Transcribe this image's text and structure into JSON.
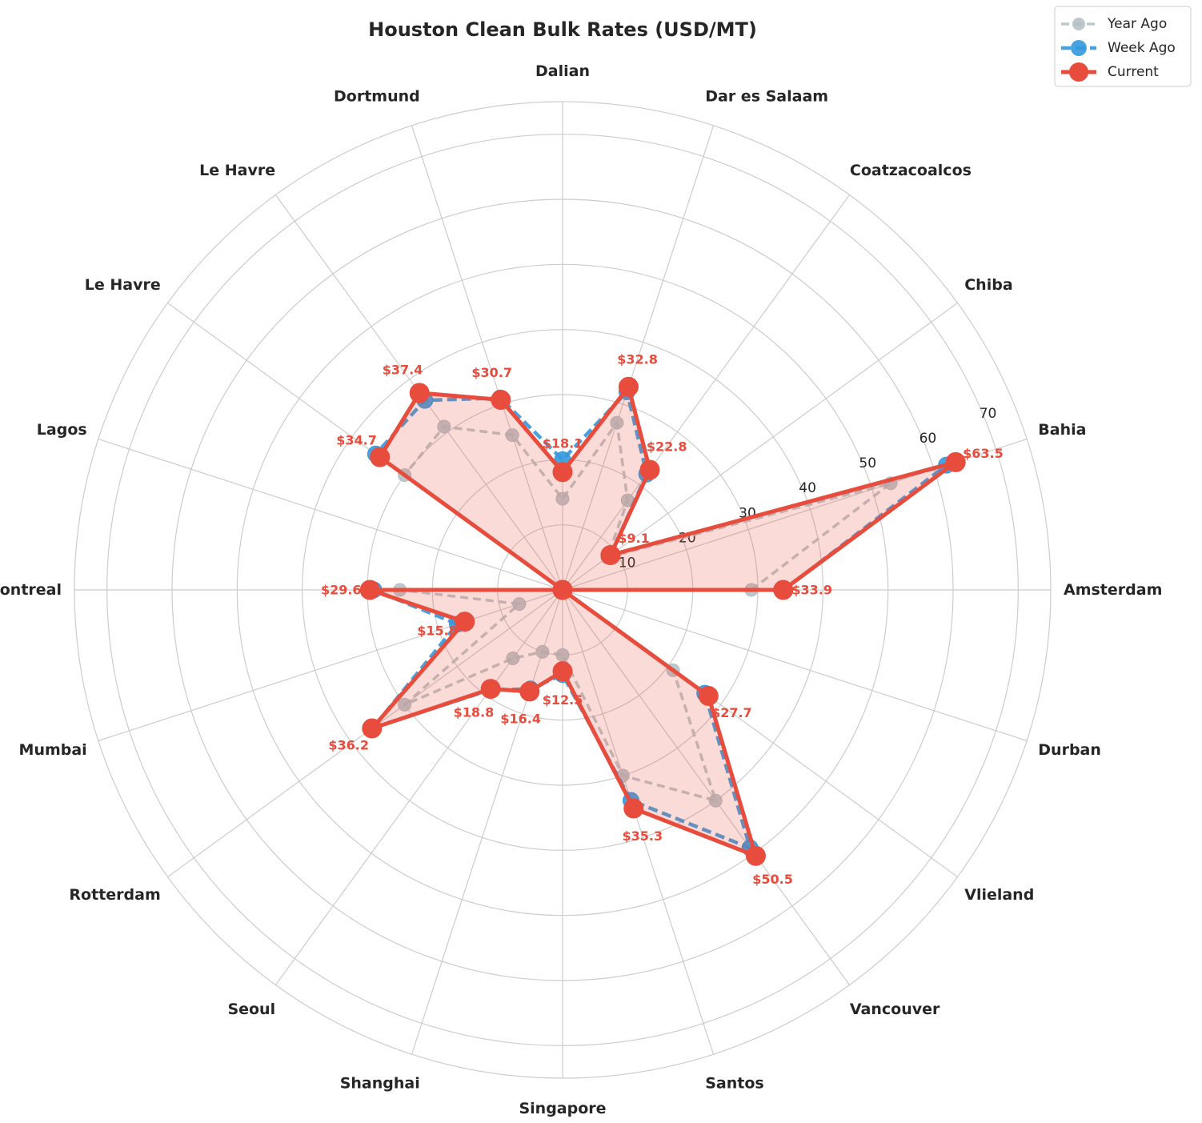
{
  "chart_data": {
    "type": "radar",
    "title": "Houston Clean Bulk Rates (USD/MT)",
    "categories": [
      "Amsterdam",
      "Bahia",
      "Chiba",
      "Coatzacoalcos",
      "Dar es Salaam",
      "Dalian",
      "Dortmund",
      "Le Havre",
      "Le Havre",
      "Lagos",
      "Montreal",
      "Mumbai",
      "Rotterdam",
      "Seoul",
      "Shanghai",
      "Singapore",
      "Santos",
      "Vancouver",
      "Vlieland",
      "Durban"
    ],
    "rlim": [
      0,
      75
    ],
    "rticks": [
      10,
      20,
      30,
      40,
      50,
      60,
      70
    ],
    "grid": true,
    "legend_position": "top-right",
    "series": [
      {
        "name": "Year Ago",
        "color": "#b2bec3",
        "style": "dashed",
        "values": [
          29.0,
          53.0,
          8.5,
          17.0,
          27.0,
          14.0,
          25.0,
          31.0,
          30.0,
          0.0,
          25.0,
          7.0,
          30.0,
          13.0,
          10.0,
          10.0,
          30.0,
          40.0,
          21.0,
          0.0
        ]
      },
      {
        "name": "Week Ago",
        "color": "#3498db",
        "style": "dashed",
        "values": [
          34.0,
          62.0,
          9.1,
          22.0,
          32.0,
          20.0,
          31.0,
          36.0,
          35.5,
          0.0,
          29.0,
          17.0,
          36.0,
          19.0,
          16.0,
          13.0,
          34.0,
          49.0,
          27.0,
          0.0
        ]
      },
      {
        "name": "Current",
        "color": "#e74c3c",
        "style": "solid",
        "values": [
          33.9,
          63.5,
          9.1,
          22.8,
          32.8,
          18.1,
          30.7,
          37.4,
          34.7,
          0.0,
          29.6,
          15.8,
          36.2,
          18.8,
          16.4,
          12.5,
          35.3,
          50.5,
          27.7,
          0.0
        ]
      }
    ],
    "value_labels": [
      "$33.9",
      "$63.5",
      "$9.1",
      "$22.8",
      "$32.8",
      "$18.1",
      "$30.7",
      "$37.4",
      "$34.7",
      "",
      "$29.6",
      "$15.8",
      "$36.2",
      "$18.8",
      "$16.4",
      "$12.5",
      "$35.3",
      "$50.5",
      "$27.7",
      ""
    ]
  }
}
